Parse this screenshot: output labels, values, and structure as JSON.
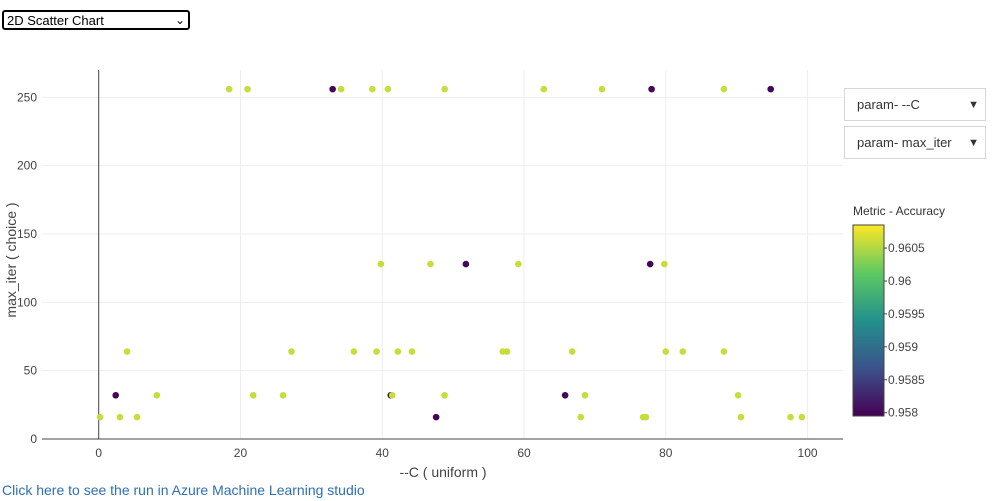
{
  "chart_selector": {
    "value": "2D Scatter Chart"
  },
  "dropdowns": [
    {
      "label": "param- --C"
    },
    {
      "label": "param- max_iter"
    }
  ],
  "colorbar": {
    "title": "Metric - Accuracy",
    "ticks": [
      "0.9605",
      "0.96",
      "0.9595",
      "0.959",
      "0.9585",
      "0.958"
    ],
    "tick_values": [
      0.9605,
      0.96,
      0.9595,
      0.959,
      0.9585,
      0.958
    ],
    "range": [
      0.95795,
      0.96085
    ],
    "colorscale": [
      "#440154",
      "#3b528b",
      "#21918c",
      "#5ec962",
      "#fde725"
    ]
  },
  "link": {
    "text": "Click here to see the run in Azure Machine Learning studio"
  },
  "chart_data": {
    "type": "scatter",
    "xlabel": "--C ( uniform )",
    "ylabel": "max_iter ( choice )",
    "xlim": [
      -8,
      105
    ],
    "ylim": [
      0,
      270
    ],
    "xticks": [
      0,
      20,
      40,
      60,
      80,
      100
    ],
    "yticks": [
      0,
      50,
      100,
      150,
      200,
      250
    ],
    "grid": true,
    "points": [
      {
        "x": 18.4,
        "y": 256,
        "v": 0.9606
      },
      {
        "x": 21.0,
        "y": 256,
        "v": 0.9606
      },
      {
        "x": 33.0,
        "y": 256,
        "v": 0.958
      },
      {
        "x": 34.2,
        "y": 256,
        "v": 0.9606
      },
      {
        "x": 38.6,
        "y": 256,
        "v": 0.9606
      },
      {
        "x": 40.8,
        "y": 256,
        "v": 0.9606
      },
      {
        "x": 48.8,
        "y": 256,
        "v": 0.9606
      },
      {
        "x": 62.8,
        "y": 256,
        "v": 0.9606
      },
      {
        "x": 71.0,
        "y": 256,
        "v": 0.9606
      },
      {
        "x": 78.0,
        "y": 256,
        "v": 0.958
      },
      {
        "x": 88.2,
        "y": 256,
        "v": 0.9606
      },
      {
        "x": 94.8,
        "y": 256,
        "v": 0.958
      },
      {
        "x": 39.8,
        "y": 128,
        "v": 0.9606
      },
      {
        "x": 46.8,
        "y": 128,
        "v": 0.9606
      },
      {
        "x": 51.8,
        "y": 128,
        "v": 0.958
      },
      {
        "x": 59.2,
        "y": 128,
        "v": 0.9606
      },
      {
        "x": 77.8,
        "y": 128,
        "v": 0.958
      },
      {
        "x": 79.8,
        "y": 128,
        "v": 0.9606
      },
      {
        "x": 4.0,
        "y": 64,
        "v": 0.9606
      },
      {
        "x": 27.2,
        "y": 64,
        "v": 0.9606
      },
      {
        "x": 36.0,
        "y": 64,
        "v": 0.9606
      },
      {
        "x": 39.2,
        "y": 64,
        "v": 0.9606
      },
      {
        "x": 42.2,
        "y": 64,
        "v": 0.9606
      },
      {
        "x": 44.2,
        "y": 64,
        "v": 0.9606
      },
      {
        "x": 57.0,
        "y": 64,
        "v": 0.9606
      },
      {
        "x": 57.6,
        "y": 64,
        "v": 0.9606
      },
      {
        "x": 66.8,
        "y": 64,
        "v": 0.9606
      },
      {
        "x": 80.0,
        "y": 64,
        "v": 0.9606
      },
      {
        "x": 82.4,
        "y": 64,
        "v": 0.9606
      },
      {
        "x": 88.2,
        "y": 64,
        "v": 0.9606
      },
      {
        "x": 2.4,
        "y": 32,
        "v": 0.958
      },
      {
        "x": 8.2,
        "y": 32,
        "v": 0.9606
      },
      {
        "x": 21.8,
        "y": 32,
        "v": 0.9606
      },
      {
        "x": 26.0,
        "y": 32,
        "v": 0.9606
      },
      {
        "x": 41.2,
        "y": 32,
        "v": 0.958
      },
      {
        "x": 41.4,
        "y": 32,
        "v": 0.9606
      },
      {
        "x": 48.8,
        "y": 32,
        "v": 0.9606
      },
      {
        "x": 65.8,
        "y": 32,
        "v": 0.958
      },
      {
        "x": 68.6,
        "y": 32,
        "v": 0.9606
      },
      {
        "x": 90.2,
        "y": 32,
        "v": 0.9606
      },
      {
        "x": 0.2,
        "y": 16,
        "v": 0.9606
      },
      {
        "x": 3.0,
        "y": 16,
        "v": 0.9606
      },
      {
        "x": 5.4,
        "y": 16,
        "v": 0.9606
      },
      {
        "x": 47.6,
        "y": 16,
        "v": 0.958
      },
      {
        "x": 68.0,
        "y": 16,
        "v": 0.9606
      },
      {
        "x": 76.8,
        "y": 16,
        "v": 0.9606
      },
      {
        "x": 77.2,
        "y": 16,
        "v": 0.9606
      },
      {
        "x": 90.6,
        "y": 16,
        "v": 0.9606
      },
      {
        "x": 97.6,
        "y": 16,
        "v": 0.9606
      },
      {
        "x": 99.2,
        "y": 16,
        "v": 0.9606
      }
    ]
  }
}
